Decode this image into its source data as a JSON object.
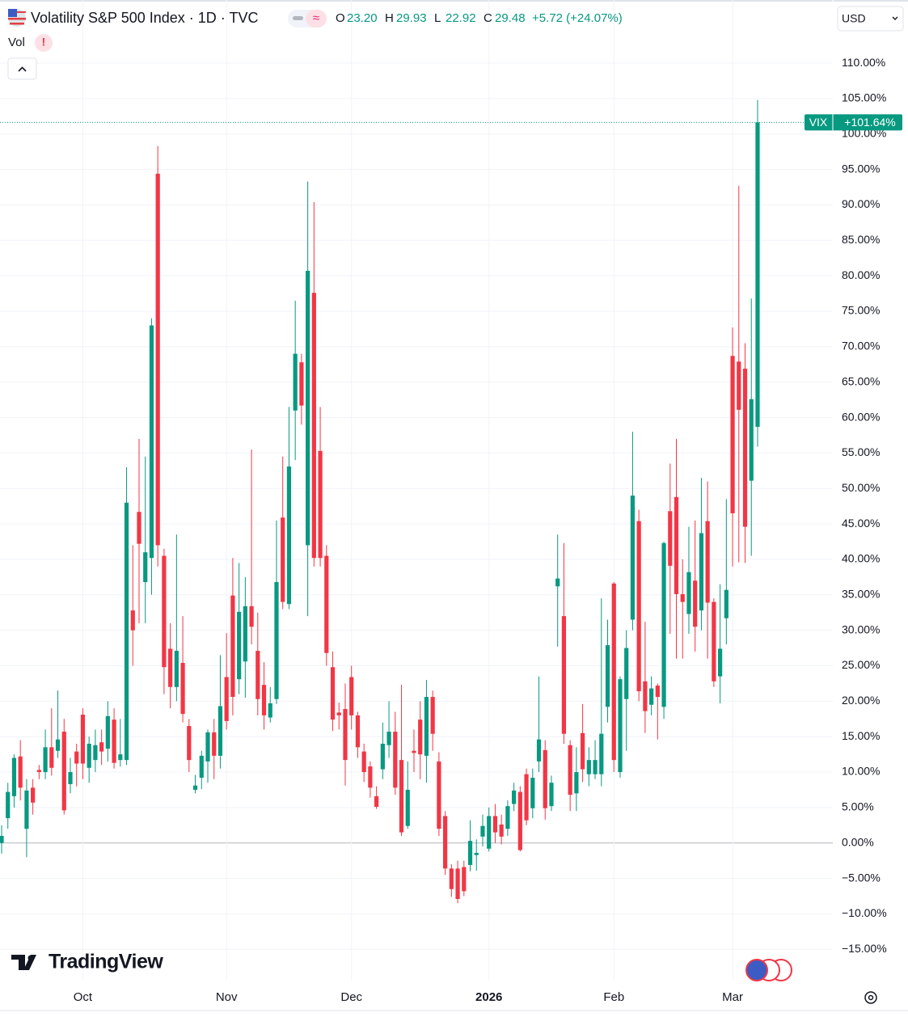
{
  "header": {
    "title": "Volatility S&P 500 Index · 1D · TVC",
    "ohlc": [
      {
        "key": "O",
        "value": "23.20"
      },
      {
        "key": "H",
        "value": "29.93"
      },
      {
        "key": "L",
        "value": "22.92"
      },
      {
        "key": "C",
        "value": "29.48"
      }
    ],
    "change": "+5.72 (+24.07%)",
    "volume": "Vol",
    "currency": "USD",
    "brand": "TradingView"
  },
  "chart_data": {
    "type": "candlestick",
    "up_color": "#089981",
    "down_color": "#f23645",
    "grid": true,
    "last_price": {
      "symbol": "VIX",
      "label": "+101.64%"
    },
    "ylim": [
      -19.3,
      118.9
    ],
    "yticks": [
      {
        "value": 110,
        "label": "110.00%"
      },
      {
        "value": 105,
        "label": "105.00%"
      },
      {
        "value": 100,
        "label": "100.00%"
      },
      {
        "value": 95,
        "label": "95.00%"
      },
      {
        "value": 90,
        "label": "90.00%"
      },
      {
        "value": 85,
        "label": "85.00%"
      },
      {
        "value": 80,
        "label": "80.00%"
      },
      {
        "value": 75,
        "label": "75.00%"
      },
      {
        "value": 70,
        "label": "70.00%"
      },
      {
        "value": 65,
        "label": "65.00%"
      },
      {
        "value": 60,
        "label": "60.00%"
      },
      {
        "value": 55,
        "label": "55.00%"
      },
      {
        "value": 50,
        "label": "50.00%"
      },
      {
        "value": 45,
        "label": "45.00%"
      },
      {
        "value": 40,
        "label": "40.00%"
      },
      {
        "value": 35,
        "label": "35.00%"
      },
      {
        "value": 30,
        "label": "30.00%"
      },
      {
        "value": 25,
        "label": "25.00%"
      },
      {
        "value": 20,
        "label": "20.00%"
      },
      {
        "value": 15,
        "label": "15.00%"
      },
      {
        "value": 10,
        "label": "10.00%"
      },
      {
        "value": 5,
        "label": "5.00%"
      },
      {
        "value": 0,
        "label": "0.00%"
      },
      {
        "value": -5,
        "label": "−5.00%"
      },
      {
        "value": -10,
        "label": "−10.00%"
      },
      {
        "value": -15,
        "label": "−15.00%"
      }
    ],
    "categories": [
      null,
      null,
      null,
      null,
      null,
      null,
      null,
      null,
      null,
      null,
      null,
      null,
      null,
      "Oct",
      null,
      null,
      null,
      null,
      null,
      null,
      null,
      null,
      null,
      null,
      null,
      null,
      null,
      null,
      null,
      null,
      null,
      null,
      null,
      null,
      null,
      null,
      "Nov",
      null,
      null,
      null,
      null,
      null,
      null,
      null,
      null,
      null,
      null,
      null,
      null,
      null,
      null,
      null,
      null,
      null,
      null,
      null,
      "Dec",
      null,
      null,
      null,
      null,
      null,
      null,
      null,
      null,
      null,
      null,
      null,
      null,
      null,
      null,
      null,
      null,
      null,
      null,
      null,
      null,
      null,
      "2026",
      null,
      null,
      null,
      null,
      null,
      null,
      null,
      null,
      null,
      null,
      null,
      null,
      null,
      null,
      null,
      null,
      null,
      null,
      null,
      "Feb",
      null,
      null,
      null,
      null,
      null,
      null,
      null,
      null,
      null,
      null,
      null,
      null,
      null,
      null,
      null,
      null,
      null,
      null,
      "Mar",
      null,
      null,
      null,
      null
    ],
    "open": [
      0,
      3.5,
      6.6,
      12.2,
      2,
      7.8,
      10.3,
      10,
      13.5,
      13,
      15.7,
      8.3,
      12.9,
      18.1,
      10.6,
      11.7,
      14.2,
      13.3,
      17.4,
      11.7,
      11.7,
      32.8,
      46.7,
      36.8,
      40.2,
      94.4,
      40.5,
      27.4,
      22,
      25.4,
      16.5,
      7.5,
      9.2,
      11.5,
      15.6,
      12.3,
      23.4,
      34.9,
      23.1,
      25.6,
      33.4,
      27.1,
      22.3,
      17.7,
      20.3,
      45.9,
      33.7,
      61,
      67.8,
      42,
      77.6,
      55.3,
      40.5,
      24.8,
      18.4,
      18.9,
      23.4,
      18,
      12.9,
      10.8,
      6.6,
      10.4,
      13.8,
      15.7,
      11.7,
      2.4,
      13,
      17.4,
      12.3,
      20.6,
      11.5,
      3.8,
      -3.6,
      -3.6,
      -3.4,
      -3.1,
      -1.7,
      0.9,
      -0.8,
      3.8,
      2.6,
      2,
      5.5,
      7.2,
      9.7,
      4.9,
      11.5,
      13.1,
      5.2,
      36.2,
      32,
      13.8,
      7,
      15.5,
      9.7,
      9.7,
      9.7,
      19.2,
      36.6,
      10,
      20.3,
      31.5,
      45.4,
      22.8,
      19.5,
      22.2,
      19.2,
      46.8,
      48.8,
      35.1,
      32.3,
      37,
      32.8,
      45.4,
      34,
      23.5,
      31.7,
      68.7,
      67.9,
      66.9,
      51.1,
      58.7
    ],
    "high": [
      2.5,
      8.5,
      12.5,
      14.5,
      9,
      9,
      11,
      16,
      19,
      21.5,
      17.5,
      12,
      14,
      19,
      15,
      16,
      16,
      20,
      19,
      17.5,
      53,
      42,
      57,
      54.5,
      74,
      98.3,
      41.5,
      31,
      43.5,
      32,
      17.5,
      9.6,
      13,
      16,
      17.5,
      26.5,
      29.6,
      40.2,
      39.5,
      37.5,
      55.5,
      32.5,
      25.5,
      22,
      45.5,
      54.5,
      61.5,
      76.5,
      69,
      93.3,
      90.4,
      61.5,
      42,
      27,
      19.8,
      22.5,
      25,
      18.5,
      14,
      11.5,
      8,
      17,
      20,
      18.5,
      22.3,
      11.5,
      16,
      20,
      23,
      21.5,
      12.8,
      4.5,
      -3,
      -2.5,
      -2.5,
      3.2,
      0.5,
      4,
      5,
      5.5,
      4,
      6,
      8.5,
      8,
      10.5,
      10.5,
      23.5,
      14.5,
      9.5,
      43.5,
      42.3,
      14.5,
      13.5,
      19.6,
      13.5,
      14.5,
      34.5,
      31.5,
      36.8,
      23.5,
      30,
      58,
      47,
      31.2,
      23.5,
      22.5,
      42.5,
      53.5,
      57,
      40,
      44.6,
      45.5,
      51.5,
      51,
      34.5,
      36.5,
      48.5,
      72.7,
      92.7,
      70.5,
      76.8,
      104.8
    ],
    "low": [
      -1.5,
      2,
      5,
      6,
      -2,
      4,
      9,
      9,
      9.5,
      12,
      4,
      7,
      8,
      9,
      8.5,
      10,
      11,
      11.5,
      10.5,
      10.8,
      11,
      25,
      31,
      31,
      35,
      39,
      21,
      19,
      20,
      17,
      10,
      7,
      7.6,
      8.5,
      9,
      10.5,
      16,
      18,
      21,
      20.5,
      28,
      18,
      16,
      17,
      19.6,
      33,
      33,
      54,
      59,
      32,
      39,
      39,
      25,
      15.8,
      16,
      8.1,
      16,
      12,
      8.6,
      6.4,
      4.8,
      9,
      12,
      6.8,
      1,
      2,
      10,
      9,
      8.5,
      13,
      1,
      -4.5,
      -7.6,
      -8.5,
      -7.5,
      -4,
      -3.9,
      -0.5,
      -1.2,
      0,
      -0.2,
      1,
      4.5,
      -1.2,
      2.5,
      3.5,
      10,
      3.3,
      4.5,
      27.7,
      14,
      4.5,
      4.5,
      8.6,
      8,
      9,
      8,
      17,
      10,
      9.2,
      13,
      30,
      20,
      15.5,
      18,
      14.6,
      17.5,
      29.5,
      26,
      26,
      29.5,
      27,
      30,
      26,
      22,
      19.7,
      28,
      39,
      39.6,
      39.5,
      40.5,
      55.9
    ],
    "close": [
      1,
      7.2,
      12,
      7.8,
      7.4,
      5.7,
      10,
      13.5,
      10.6,
      14.6,
      4.6,
      10,
      11.2,
      11.2,
      14,
      13.8,
      12.9,
      17.9,
      11.3,
      12.5,
      48,
      30,
      42.2,
      41,
      73,
      42,
      24.8,
      22,
      27.1,
      18.2,
      11.7,
      8.1,
      12.3,
      15.6,
      12.3,
      19.3,
      17.2,
      20.6,
      32.6,
      33.4,
      30.5,
      20.3,
      18,
      19.7,
      36.8,
      34,
      53.1,
      69,
      61.7,
      80.7,
      40.2,
      40.2,
      26.8,
      17.4,
      18,
      11.7,
      18,
      13.5,
      10,
      7.8,
      5.1,
      14,
      15.7,
      7.8,
      1.5,
      7.5,
      12.7,
      12.5,
      20.6,
      15.4,
      2,
      -3.6,
      -6.5,
      -7.9,
      -6.8,
      0.3,
      -1.4,
      2.4,
      3.8,
      1.5,
      0.9,
      5.2,
      7.4,
      -1,
      3.2,
      9.2,
      14.6,
      4.9,
      8.5,
      37.3,
      15.4,
      6.8,
      10,
      10.4,
      11.7,
      11.7,
      15.4,
      27.9,
      11.7,
      23.1,
      27.5,
      49,
      21.4,
      18.6,
      21.8,
      20.6,
      42.3,
      39.1,
      35.1,
      34,
      38.2,
      30.5,
      43.7,
      33.9,
      22.8,
      27.4,
      35.7,
      46.5,
      61.1,
      44.6,
      62.6,
      101.64
    ]
  }
}
